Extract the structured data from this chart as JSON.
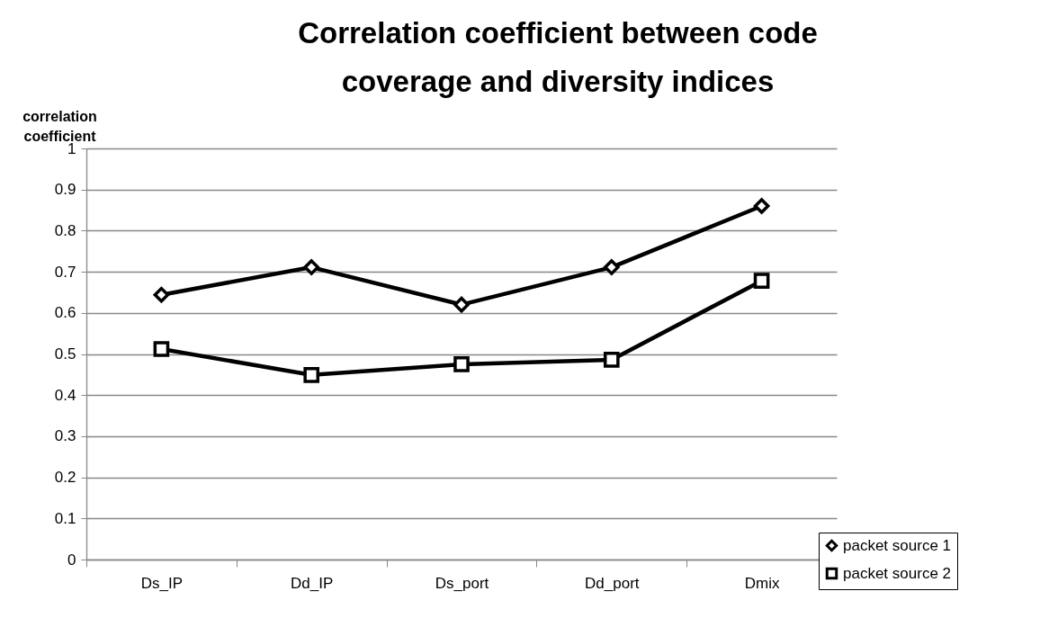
{
  "chart_data": {
    "type": "line",
    "title": "Correlation coefficient between code coverage and diversity indices",
    "ylabel": "correlation coefficient",
    "categories": [
      "Ds_IP",
      "Dd_IP",
      "Ds_port",
      "Dd_port",
      "Dmix"
    ],
    "series": [
      {
        "name": "packet source 1",
        "color": "#000000",
        "marker": "diamond",
        "values": [
          0.644,
          0.711,
          0.62,
          0.711,
          0.86
        ]
      },
      {
        "name": "packet source 2",
        "color": "#000000",
        "marker": "square",
        "values": [
          0.512,
          0.449,
          0.475,
          0.486,
          0.678
        ]
      }
    ],
    "ylim": [
      0,
      1
    ],
    "yticks": [
      0,
      0.1,
      0.2,
      0.3,
      0.4,
      0.5,
      0.6,
      0.7,
      0.8,
      0.9,
      1
    ],
    "grid": "y",
    "legend": "bottom right",
    "line_style": "solid"
  }
}
